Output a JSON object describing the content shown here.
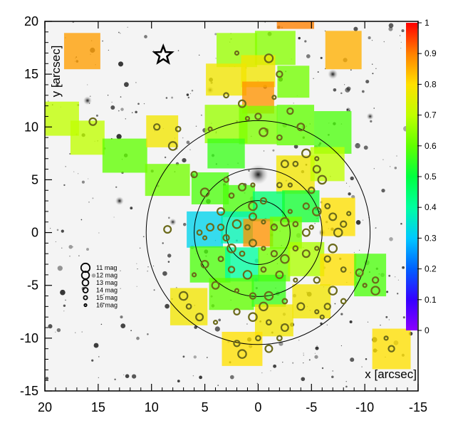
{
  "chart_data": {
    "type": "heatmap",
    "xlabel": "x [arcsec]",
    "ylabel": "y [arcsec]",
    "xlim": [
      20,
      -15
    ],
    "ylim": [
      -15,
      20
    ],
    "x_ticks": [
      20,
      15,
      10,
      5,
      0,
      -5,
      -10,
      -15
    ],
    "y_ticks": [
      20,
      15,
      10,
      5,
      0,
      -5,
      -10,
      -15
    ],
    "colorbar": {
      "range": [
        0,
        1
      ],
      "ticks": [
        "1",
        "0.9",
        "0.8",
        "0.7",
        "0.6",
        "0.5",
        "0.4",
        "0.3",
        "0.2",
        "0.1",
        "0"
      ]
    },
    "circles_radius_arcsec": [
      3,
      6,
      10.5
    ],
    "star_marker": {
      "x": 8.9,
      "y": 16.8
    },
    "cells": [
      {
        "x": 16.5,
        "y": 17.2,
        "w": 3.4,
        "h": 3.4,
        "v": 0.87
      },
      {
        "x": 19.0,
        "y": 10.8,
        "w": 4.4,
        "h": 3.2,
        "v": 0.7
      },
      {
        "x": 16.0,
        "y": 9.0,
        "w": 3.2,
        "h": 3.2,
        "v": 0.7
      },
      {
        "x": 12.5,
        "y": 7.3,
        "w": 4.2,
        "h": 3.2,
        "v": 0.6
      },
      {
        "x": 9.0,
        "y": 9.6,
        "w": 3.0,
        "h": 3.0,
        "v": 0.78
      },
      {
        "x": 8.5,
        "y": 5.0,
        "w": 4.2,
        "h": 3.0,
        "v": 0.62
      },
      {
        "x": 4.5,
        "y": 4.2,
        "w": 3.5,
        "h": 3.0,
        "v": 0.58
      },
      {
        "x": 2.0,
        "y": 17.3,
        "w": 3.8,
        "h": 3.2,
        "v": 0.66
      },
      {
        "x": -1.6,
        "y": 17.5,
        "w": 3.8,
        "h": 3.2,
        "v": 0.64
      },
      {
        "x": -3.5,
        "y": 20.0,
        "w": 3.5,
        "h": 1.4,
        "v": 0.9
      },
      {
        "x": -8.0,
        "y": 17.3,
        "w": 3.4,
        "h": 3.6,
        "v": 0.85
      },
      {
        "x": 3.0,
        "y": 14.5,
        "w": 3.8,
        "h": 3.0,
        "v": 0.78
      },
      {
        "x": 0.0,
        "y": 15.3,
        "w": 3.2,
        "h": 3.0,
        "v": 0.78
      },
      {
        "x": -3.3,
        "y": 14.3,
        "w": 3.0,
        "h": 3.0,
        "v": 0.62
      },
      {
        "x": 0.0,
        "y": 12.8,
        "w": 3.0,
        "h": 3.0,
        "v": 0.88
      },
      {
        "x": 3.0,
        "y": 10.3,
        "w": 4.0,
        "h": 3.6,
        "v": 0.66
      },
      {
        "x": 0.0,
        "y": 10.2,
        "w": 3.6,
        "h": 3.6,
        "v": 0.63
      },
      {
        "x": -3.5,
        "y": 10.2,
        "w": 3.5,
        "h": 3.8,
        "v": 0.6
      },
      {
        "x": -7.0,
        "y": 9.5,
        "w": 3.5,
        "h": 4.0,
        "v": 0.58
      },
      {
        "x": 3.0,
        "y": 7.5,
        "w": 3.5,
        "h": 2.8,
        "v": 0.56
      },
      {
        "x": -3.5,
        "y": 5.5,
        "w": 3.6,
        "h": 3.6,
        "v": 0.78
      },
      {
        "x": -6.5,
        "y": 6.5,
        "w": 3.2,
        "h": 3.2,
        "v": 0.7
      },
      {
        "x": 1.8,
        "y": 3.0,
        "w": 3.0,
        "h": 3.0,
        "v": 0.58
      },
      {
        "x": -1.0,
        "y": 2.5,
        "w": 3.0,
        "h": 2.8,
        "v": 0.45
      },
      {
        "x": -4.0,
        "y": 2.5,
        "w": 3.5,
        "h": 3.0,
        "v": 0.52
      },
      {
        "x": -7.5,
        "y": 1.5,
        "w": 3.2,
        "h": 3.6,
        "v": 0.8
      },
      {
        "x": 5.0,
        "y": 0.3,
        "w": 3.4,
        "h": 3.4,
        "v": 0.32
      },
      {
        "x": 2.0,
        "y": 0.5,
        "w": 3.0,
        "h": 3.0,
        "v": 0.38
      },
      {
        "x": 0.0,
        "y": 0.0,
        "w": 2.8,
        "h": 2.6,
        "v": 0.88
      },
      {
        "x": -2.6,
        "y": 0.0,
        "w": 3.0,
        "h": 3.0,
        "v": 0.62
      },
      {
        "x": 4.5,
        "y": -3.0,
        "w": 3.8,
        "h": 3.4,
        "v": 0.58
      },
      {
        "x": 1.5,
        "y": -3.0,
        "w": 3.2,
        "h": 3.2,
        "v": 0.4
      },
      {
        "x": -1.5,
        "y": -3.0,
        "w": 3.0,
        "h": 3.2,
        "v": 0.62
      },
      {
        "x": -4.5,
        "y": -2.5,
        "w": 3.4,
        "h": 3.2,
        "v": 0.68
      },
      {
        "x": -7.5,
        "y": -3.5,
        "w": 3.4,
        "h": 3.0,
        "v": 0.8
      },
      {
        "x": -10.5,
        "y": -4.0,
        "w": 3.0,
        "h": 4.0,
        "v": 0.58
      },
      {
        "x": 2.5,
        "y": -5.8,
        "w": 4.2,
        "h": 3.0,
        "v": 0.6
      },
      {
        "x": -1.0,
        "y": -5.5,
        "w": 3.2,
        "h": 3.0,
        "v": 0.56
      },
      {
        "x": -5.0,
        "y": -6.5,
        "w": 3.6,
        "h": 3.2,
        "v": 0.78
      },
      {
        "x": 6.5,
        "y": -7.0,
        "w": 3.5,
        "h": 3.5,
        "v": 0.78
      },
      {
        "x": -1.5,
        "y": -8.3,
        "w": 3.6,
        "h": 3.0,
        "v": 0.78
      },
      {
        "x": 1.5,
        "y": -11.0,
        "w": 3.8,
        "h": 3.2,
        "v": 0.8
      },
      {
        "x": -12.5,
        "y": -11.0,
        "w": 3.6,
        "h": 3.8,
        "v": 0.8
      }
    ],
    "stars_plotted": [
      [
        2.0,
        17.0
      ],
      [
        -2.0,
        15.0
      ],
      [
        -1.0,
        16.5
      ],
      [
        3.0,
        13.0
      ],
      [
        1.5,
        12.2
      ],
      [
        4.5,
        9.8
      ],
      [
        9.5,
        10.0
      ],
      [
        8.0,
        8.2
      ],
      [
        7.5,
        9.8
      ],
      [
        15.5,
        10.5
      ],
      [
        1.0,
        10.8
      ],
      [
        0.0,
        11.0
      ],
      [
        -0.5,
        9.5
      ],
      [
        -2.0,
        9.0
      ],
      [
        -4.0,
        10.0
      ],
      [
        -1.5,
        12.8
      ],
      [
        -3.0,
        11.5
      ],
      [
        -4.5,
        7.5
      ],
      [
        -3.5,
        6.5
      ],
      [
        -5.5,
        6.0
      ],
      [
        -3.0,
        4.5
      ],
      [
        -5.0,
        4.0
      ],
      [
        -6.0,
        5.0
      ],
      [
        -2.0,
        4.5
      ],
      [
        -2.5,
        6.5
      ],
      [
        -5.5,
        7.0
      ],
      [
        6.0,
        5.5
      ],
      [
        5.0,
        3.8
      ],
      [
        3.0,
        5.0
      ],
      [
        1.5,
        4.3
      ],
      [
        0.5,
        4.5
      ],
      [
        -0.5,
        3.0
      ],
      [
        0.5,
        2.5
      ],
      [
        2.5,
        3.5
      ],
      [
        3.5,
        2.0
      ],
      [
        -3.0,
        2.0
      ],
      [
        -4.5,
        2.5
      ],
      [
        -5.5,
        2.0
      ],
      [
        -6.5,
        2.5
      ],
      [
        -7.0,
        1.5
      ],
      [
        -8.5,
        1.8
      ],
      [
        -8.0,
        0.8
      ],
      [
        -7.5,
        0.0
      ],
      [
        5.5,
        0.0
      ],
      [
        4.5,
        0.5
      ],
      [
        5.0,
        -0.5
      ],
      [
        3.5,
        0.5
      ],
      [
        2.0,
        0.8
      ],
      [
        1.0,
        0.5
      ],
      [
        0.5,
        1.5
      ],
      [
        -0.5,
        1.0
      ],
      [
        -1.5,
        0.5
      ],
      [
        -2.5,
        1.0
      ],
      [
        -3.5,
        0.8
      ],
      [
        -4.5,
        0.0
      ],
      [
        -5.0,
        0.5
      ],
      [
        3.0,
        -0.5
      ],
      [
        2.5,
        -1.5
      ],
      [
        1.5,
        -2.0
      ],
      [
        0.5,
        -1.0
      ],
      [
        -0.5,
        -1.5
      ],
      [
        -1.5,
        -2.0
      ],
      [
        -2.5,
        -2.5
      ],
      [
        -3.5,
        -1.5
      ],
      [
        -4.5,
        -2.0
      ],
      [
        -5.5,
        -1.5
      ],
      [
        -6.5,
        -2.5
      ],
      [
        -7.0,
        -1.5
      ],
      [
        -8.0,
        -3.5
      ],
      [
        -9.5,
        -3.8
      ],
      [
        -10.0,
        -5.0
      ],
      [
        -11.0,
        -4.5
      ],
      [
        -11.0,
        -5.5
      ],
      [
        3.5,
        -2.5
      ],
      [
        5.0,
        -3.0
      ],
      [
        6.0,
        -4.0
      ],
      [
        2.5,
        -3.5
      ],
      [
        1.0,
        -4.0
      ],
      [
        -0.5,
        -3.5
      ],
      [
        -2.0,
        -4.0
      ],
      [
        -3.5,
        -4.5
      ],
      [
        -5.5,
        -4.5
      ],
      [
        -7.0,
        -5.5
      ],
      [
        -8.0,
        -6.5
      ],
      [
        4.0,
        -5.0
      ],
      [
        2.0,
        -5.5
      ],
      [
        0.5,
        -6.0
      ],
      [
        -1.0,
        -6.0
      ],
      [
        -2.5,
        -6.5
      ],
      [
        -4.0,
        -7.0
      ],
      [
        -5.5,
        -7.5
      ],
      [
        -6.5,
        -7.0
      ],
      [
        7.0,
        -6.0
      ],
      [
        6.5,
        -7.0
      ],
      [
        5.5,
        -8.0
      ],
      [
        4.0,
        -8.5
      ],
      [
        2.0,
        -7.5
      ],
      [
        0.5,
        -8.0
      ],
      [
        -1.0,
        -8.5
      ],
      [
        -2.5,
        -9.0
      ],
      [
        -6.0,
        -8.0
      ],
      [
        2.0,
        -10.5
      ],
      [
        1.5,
        -11.5
      ],
      [
        0.0,
        -10.0
      ],
      [
        -1.0,
        -11.0
      ],
      [
        -12.0,
        -10.0
      ],
      [
        -12.5,
        -11.0
      ],
      [
        -0.5,
        -7.0
      ],
      [
        -2.0,
        -10.0
      ],
      [
        8.5,
        0.3
      ]
    ],
    "legend": [
      {
        "size": 11,
        "label": "11 mag"
      },
      {
        "size": 12,
        "label": "12 mag"
      },
      {
        "size": 13,
        "label": "13 mag"
      },
      {
        "size": 14,
        "label": "14 mag"
      },
      {
        "size": 15,
        "label": "15 mag"
      },
      {
        "size": 16,
        "label": "16 mag"
      }
    ],
    "colors": {
      "frame": "#000000",
      "colorbar": [
        "#8b00ff",
        "#0000ff",
        "#00c8ff",
        "#00ff80",
        "#80ff00",
        "#ffff00",
        "#ff8000",
        "#ff0000"
      ]
    }
  }
}
